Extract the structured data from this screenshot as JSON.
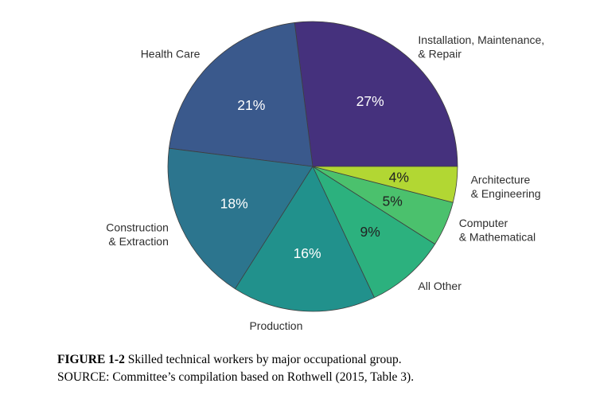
{
  "figure": {
    "caption_label": "FIGURE 1-2",
    "caption_text": "Skilled technical workers by major occupational group.",
    "source": "SOURCE: Committee’s compilation based on Rothwell (2015, Table 3)."
  },
  "chart_data": {
    "type": "pie",
    "title": "Skilled technical workers by major occupational group",
    "unit": "percent",
    "start_angle": 0,
    "direction": "counterclockwise",
    "label_distance": 1.1,
    "pct_distance": 0.6,
    "edge_color": "#3f3f3f",
    "background": "#ffffff",
    "slices": [
      {
        "id": "installation-maintenance-repair",
        "label_lines": [
          "Installation, Maintenance,",
          "& Repair"
        ],
        "value": 27,
        "pct_label": "27%",
        "color": "#45317d",
        "pct_color": "#ffffff"
      },
      {
        "id": "health-care",
        "label_lines": [
          "Health Care"
        ],
        "value": 21,
        "pct_label": "21%",
        "color": "#3a598c",
        "pct_color": "#ffffff"
      },
      {
        "id": "construction-extraction",
        "label_lines": [
          "Construction",
          "& Extraction"
        ],
        "value": 18,
        "pct_label": "18%",
        "color": "#2c758e",
        "pct_color": "#ffffff"
      },
      {
        "id": "production",
        "label_lines": [
          "Production"
        ],
        "value": 16,
        "pct_label": "16%",
        "color": "#21918c",
        "pct_color": "#ffffff"
      },
      {
        "id": "all-other",
        "label_lines": [
          "All Other"
        ],
        "value": 9,
        "pct_label": "9%",
        "color": "#2cb17e",
        "pct_color": "#222222"
      },
      {
        "id": "computer-mathematical",
        "label_lines": [
          "Computer",
          "& Mathematical"
        ],
        "value": 5,
        "pct_label": "5%",
        "color": "#4bc16d",
        "pct_color": "#222222"
      },
      {
        "id": "architecture-engineering",
        "label_lines": [
          "Architecture",
          "& Engineering"
        ],
        "value": 4,
        "pct_label": "4%",
        "color": "#b2d733",
        "pct_color": "#222222"
      }
    ]
  }
}
